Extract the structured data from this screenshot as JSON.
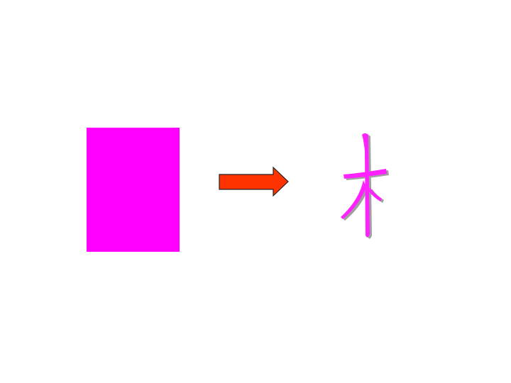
{
  "slide": {
    "colors": {
      "background": "#ffffff",
      "rectangle": "#ff00ff",
      "arrow_fill": "#ff3300",
      "arrow_stroke": "#222222",
      "glyph": "#ff22ff",
      "glyph_shadow": "#a0a0a0"
    },
    "glyph_char": "木",
    "icons": {
      "arrow": "right-arrow-icon",
      "glyph": "radical-mu-glyph"
    }
  }
}
